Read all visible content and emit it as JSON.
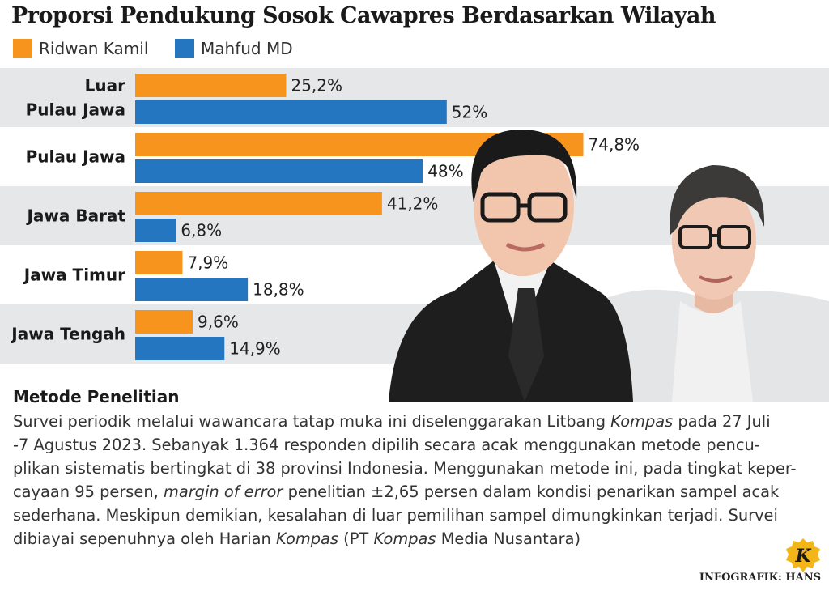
{
  "colors": {
    "ridwan": "#F7941D",
    "mahfud": "#2576C0",
    "band": "#E6E7E8"
  },
  "chart_data": {
    "type": "bar",
    "orientation": "horizontal",
    "title": "Proporsi Pendukung Sosok Cawapres Berdasarkan Wilayah",
    "categories": [
      [
        "Luar",
        "Pulau Jawa"
      ],
      [
        "Pulau Jawa"
      ],
      [
        "Jawa Barat"
      ],
      [
        "Jawa Timur"
      ],
      [
        "Jawa Tengah"
      ]
    ],
    "series": [
      {
        "name": "Ridwan Kamil",
        "values": [
          25.2,
          74.8,
          41.2,
          7.9,
          9.6
        ],
        "labels": [
          "25,2%",
          "74,8%",
          "41,2%",
          "7,9%",
          "9,6%"
        ]
      },
      {
        "name": "Mahfud MD",
        "values": [
          52,
          48,
          6.8,
          18.8,
          14.9
        ],
        "labels": [
          "52%",
          "48%",
          "6,8%",
          "18,8%",
          "14,9%"
        ]
      }
    ],
    "xlim": [
      0,
      100
    ],
    "grid": false,
    "legend": "top-left"
  },
  "methods": {
    "heading": "Metode Penelitian",
    "lines": [
      "Survei periodik melalui wawancara tatap muka ini diselenggarakan Litbang Kompas pada 27 Juli",
      "-7 Agustus 2023. Sebanyak 1.364 responden dipilih secara acak menggunakan metode pencu-",
      "plikan sistematis bertingkat di 38 provinsi Indonesia. Menggunakan metode ini, pada tingkat keper-",
      "cayaan 95 persen, margin of error penelitian ±2,65 persen dalam kondisi penarikan sampel acak",
      "sederhana. Meskipun demikian, kesalahan di luar pemilihan sampel dimungkinkan terjadi. Survei",
      "dibiayai sepenuhnya oleh Harian Kompas (PT Kompas Media Nusantara)"
    ]
  },
  "credit": "INFOGRAFIK: HANS",
  "logo_letter": "K"
}
